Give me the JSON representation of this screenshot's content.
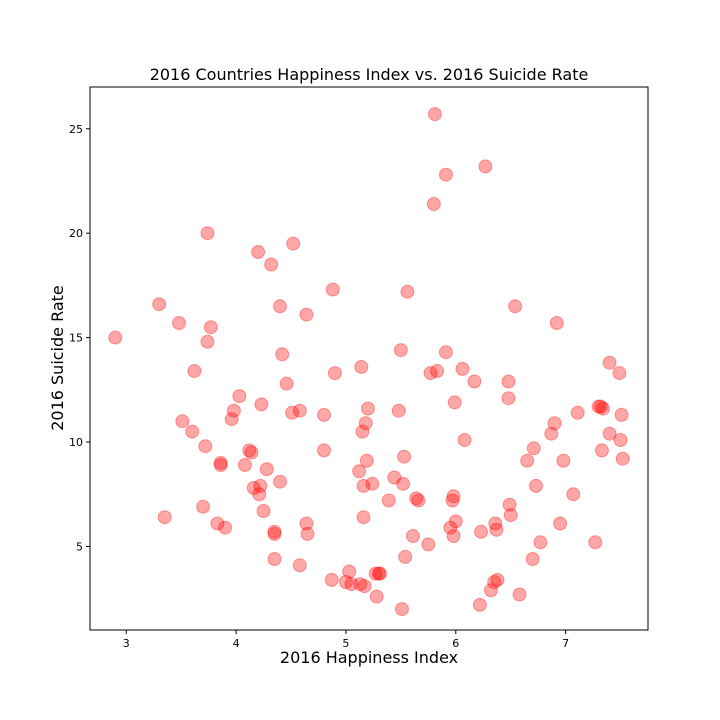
{
  "chart_data": {
    "type": "scatter",
    "title": "2016 Countries Happiness Index vs. 2016 Suicide Rate",
    "xlabel": "2016 Happiness Index",
    "ylabel": "2016 Suicide Rate",
    "xlim": [
      2.67,
      7.75
    ],
    "ylim": [
      1.0,
      27.0
    ],
    "xticks": [
      3,
      4,
      5,
      6,
      7
    ],
    "yticks": [
      5,
      10,
      15,
      20,
      25
    ],
    "marker_color": "#ff0000",
    "marker_opacity": 0.35,
    "grid": false,
    "points": [
      [
        2.9,
        15.0
      ],
      [
        3.3,
        16.6
      ],
      [
        3.35,
        6.4
      ],
      [
        3.48,
        15.7
      ],
      [
        3.51,
        11.0
      ],
      [
        3.6,
        10.5
      ],
      [
        3.62,
        13.4
      ],
      [
        3.7,
        6.9
      ],
      [
        3.72,
        9.8
      ],
      [
        3.74,
        20.0
      ],
      [
        3.74,
        14.8
      ],
      [
        3.77,
        15.5
      ],
      [
        3.83,
        6.1
      ],
      [
        3.86,
        9.0
      ],
      [
        3.86,
        8.9
      ],
      [
        3.9,
        5.9
      ],
      [
        3.96,
        11.1
      ],
      [
        3.98,
        11.5
      ],
      [
        4.03,
        12.2
      ],
      [
        4.08,
        8.9
      ],
      [
        4.12,
        9.6
      ],
      [
        4.14,
        9.5
      ],
      [
        4.16,
        7.8
      ],
      [
        4.2,
        19.1
      ],
      [
        4.21,
        7.5
      ],
      [
        4.22,
        7.9
      ],
      [
        4.23,
        11.8
      ],
      [
        4.25,
        6.7
      ],
      [
        4.28,
        8.7
      ],
      [
        4.32,
        18.5
      ],
      [
        4.35,
        5.6
      ],
      [
        4.35,
        5.7
      ],
      [
        4.35,
        4.4
      ],
      [
        4.4,
        16.5
      ],
      [
        4.4,
        8.1
      ],
      [
        4.42,
        14.2
      ],
      [
        4.46,
        12.8
      ],
      [
        4.51,
        11.4
      ],
      [
        4.52,
        19.5
      ],
      [
        4.58,
        11.5
      ],
      [
        4.58,
        4.1
      ],
      [
        4.64,
        16.1
      ],
      [
        4.64,
        6.1
      ],
      [
        4.65,
        5.6
      ],
      [
        4.8,
        11.3
      ],
      [
        4.8,
        9.6
      ],
      [
        4.87,
        3.4
      ],
      [
        4.88,
        17.3
      ],
      [
        4.9,
        13.3
      ],
      [
        5.0,
        3.3
      ],
      [
        5.03,
        3.8
      ],
      [
        5.05,
        3.2
      ],
      [
        5.12,
        8.6
      ],
      [
        5.13,
        3.2
      ],
      [
        5.14,
        13.6
      ],
      [
        5.15,
        10.5
      ],
      [
        5.16,
        6.4
      ],
      [
        5.16,
        7.9
      ],
      [
        5.17,
        3.1
      ],
      [
        5.18,
        10.9
      ],
      [
        5.19,
        9.1
      ],
      [
        5.2,
        11.6
      ],
      [
        5.24,
        8.0
      ],
      [
        5.27,
        3.7
      ],
      [
        5.28,
        2.6
      ],
      [
        5.3,
        3.7
      ],
      [
        5.31,
        3.7
      ],
      [
        5.39,
        7.2
      ],
      [
        5.44,
        8.3
      ],
      [
        5.48,
        11.5
      ],
      [
        5.5,
        14.4
      ],
      [
        5.51,
        2.0
      ],
      [
        5.52,
        8.0
      ],
      [
        5.53,
        9.3
      ],
      [
        5.54,
        4.5
      ],
      [
        5.56,
        17.2
      ],
      [
        5.61,
        5.5
      ],
      [
        5.64,
        7.3
      ],
      [
        5.66,
        7.2
      ],
      [
        5.75,
        5.1
      ],
      [
        5.77,
        13.3
      ],
      [
        5.8,
        21.4
      ],
      [
        5.81,
        25.7
      ],
      [
        5.83,
        13.4
      ],
      [
        5.91,
        14.3
      ],
      [
        5.91,
        22.8
      ],
      [
        5.95,
        5.9
      ],
      [
        5.97,
        7.2
      ],
      [
        5.98,
        5.5
      ],
      [
        5.98,
        7.4
      ],
      [
        5.99,
        11.9
      ],
      [
        6.0,
        6.2
      ],
      [
        6.06,
        13.5
      ],
      [
        6.08,
        10.1
      ],
      [
        6.17,
        12.9
      ],
      [
        6.22,
        2.2
      ],
      [
        6.23,
        5.7
      ],
      [
        6.27,
        23.2
      ],
      [
        6.32,
        2.9
      ],
      [
        6.35,
        3.3
      ],
      [
        6.36,
        6.1
      ],
      [
        6.37,
        5.8
      ],
      [
        6.38,
        3.4
      ],
      [
        6.48,
        12.9
      ],
      [
        6.48,
        12.1
      ],
      [
        6.49,
        7.0
      ],
      [
        6.5,
        6.5
      ],
      [
        6.54,
        16.5
      ],
      [
        6.58,
        2.7
      ],
      [
        6.65,
        9.1
      ],
      [
        6.7,
        4.4
      ],
      [
        6.71,
        9.7
      ],
      [
        6.73,
        7.9
      ],
      [
        6.77,
        5.2
      ],
      [
        6.87,
        10.4
      ],
      [
        6.9,
        10.9
      ],
      [
        6.92,
        15.7
      ],
      [
        6.95,
        6.1
      ],
      [
        6.98,
        9.1
      ],
      [
        7.07,
        7.5
      ],
      [
        7.11,
        11.4
      ],
      [
        7.27,
        5.2
      ],
      [
        7.3,
        11.7
      ],
      [
        7.32,
        11.7
      ],
      [
        7.34,
        11.6
      ],
      [
        7.33,
        9.6
      ],
      [
        7.4,
        13.8
      ],
      [
        7.4,
        10.4
      ],
      [
        7.49,
        13.3
      ],
      [
        7.5,
        10.1
      ],
      [
        7.51,
        11.3
      ],
      [
        7.52,
        9.2
      ]
    ]
  }
}
